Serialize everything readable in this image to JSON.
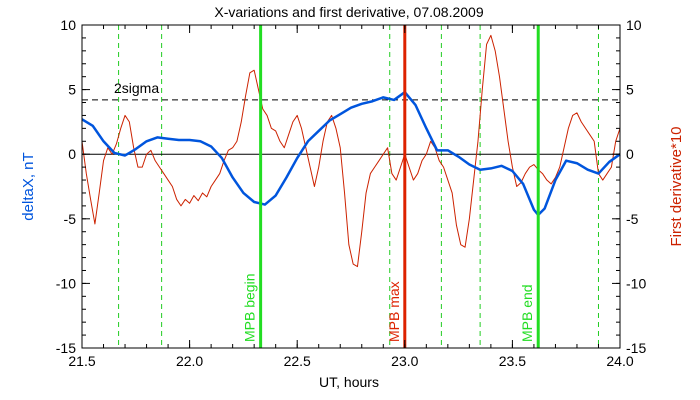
{
  "chart_data": {
    "type": "line",
    "title": "X-variations and first derivative, 07.08.2009",
    "xlabel": "UT, hours",
    "ylabel_left": "deltaX, nT",
    "ylabel_right": "First derivative*10",
    "xlim": [
      21.5,
      24.0
    ],
    "ylim_left": [
      -15,
      10
    ],
    "ylim_right": [
      -15,
      10
    ],
    "x_ticks": [
      "21.5",
      "22.0",
      "22.5",
      "23.0",
      "23.5",
      "24.0"
    ],
    "y_ticks_left": [
      "-15",
      "-10",
      "-5",
      "0",
      "5",
      "10"
    ],
    "y_ticks_right": [
      "-15",
      "-10",
      "-5",
      "0",
      "5",
      "10"
    ],
    "colors": {
      "deltaX": "#0055dd",
      "derivative": "#cc2200",
      "mpb_green": "#22dd22",
      "mpb_red": "#dd2200",
      "threshold": "#000000",
      "axes": "#000000"
    },
    "threshold": {
      "label": "2sigma",
      "y": 4.2
    },
    "zero_line": 0,
    "markers": [
      {
        "x": 22.33,
        "label": "MPB begin",
        "color": "#22dd22"
      },
      {
        "x": 23.0,
        "label": "MPB max",
        "color": "#dd2200"
      },
      {
        "x": 23.62,
        "label": "MPB end",
        "color": "#22dd22"
      }
    ],
    "dashed_verticals": [
      21.67,
      21.87,
      22.93,
      23.17,
      23.35,
      23.9
    ],
    "series": [
      {
        "key": "deltaX",
        "color": "#0055dd",
        "x": [
          21.5,
          21.55,
          21.6,
          21.65,
          21.7,
          21.75,
          21.8,
          21.85,
          21.9,
          21.95,
          22.0,
          22.05,
          22.1,
          22.15,
          22.2,
          22.25,
          22.3,
          22.35,
          22.4,
          22.45,
          22.5,
          22.55,
          22.6,
          22.65,
          22.7,
          22.75,
          22.8,
          22.85,
          22.9,
          22.95,
          23.0,
          23.05,
          23.1,
          23.15,
          23.2,
          23.25,
          23.3,
          23.35,
          23.4,
          23.45,
          23.5,
          23.55,
          23.6,
          23.62,
          23.65,
          23.7,
          23.75,
          23.8,
          23.85,
          23.9,
          23.95,
          24.0
        ],
        "y": [
          2.7,
          2.2,
          1.0,
          0.1,
          -0.1,
          0.4,
          1.0,
          1.3,
          1.2,
          1.1,
          1.1,
          1.0,
          0.6,
          -0.3,
          -1.8,
          -3.0,
          -3.7,
          -3.9,
          -3.2,
          -1.8,
          -0.3,
          1.0,
          1.8,
          2.6,
          3.1,
          3.6,
          3.9,
          4.1,
          4.4,
          4.2,
          4.8,
          3.8,
          2.0,
          0.3,
          0.3,
          -0.2,
          -0.8,
          -1.2,
          -1.1,
          -0.9,
          -1.3,
          -2.3,
          -4.3,
          -4.7,
          -4.2,
          -2.0,
          -0.5,
          -0.7,
          -1.2,
          -1.5,
          -0.6,
          0.0
        ]
      },
      {
        "key": "derivative",
        "color": "#cc2200",
        "x": [
          21.5,
          21.52,
          21.54,
          21.56,
          21.58,
          21.6,
          21.62,
          21.64,
          21.66,
          21.68,
          21.7,
          21.72,
          21.74,
          21.76,
          21.78,
          21.8,
          21.82,
          21.84,
          21.86,
          21.88,
          21.9,
          21.92,
          21.94,
          21.96,
          21.98,
          22.0,
          22.02,
          22.04,
          22.06,
          22.08,
          22.1,
          22.12,
          22.14,
          22.16,
          22.18,
          22.2,
          22.22,
          22.24,
          22.26,
          22.28,
          22.3,
          22.32,
          22.34,
          22.36,
          22.38,
          22.4,
          22.42,
          22.44,
          22.46,
          22.48,
          22.5,
          22.52,
          22.54,
          22.56,
          22.58,
          22.6,
          22.62,
          22.64,
          22.66,
          22.68,
          22.7,
          22.72,
          22.74,
          22.76,
          22.78,
          22.8,
          22.82,
          22.84,
          22.86,
          22.88,
          22.9,
          22.92,
          22.94,
          22.96,
          22.98,
          23.0,
          23.02,
          23.04,
          23.06,
          23.08,
          23.1,
          23.12,
          23.14,
          23.16,
          23.18,
          23.2,
          23.22,
          23.24,
          23.26,
          23.28,
          23.3,
          23.32,
          23.34,
          23.36,
          23.38,
          23.4,
          23.42,
          23.44,
          23.46,
          23.48,
          23.5,
          23.52,
          23.54,
          23.56,
          23.58,
          23.6,
          23.62,
          23.64,
          23.66,
          23.68,
          23.7,
          23.72,
          23.74,
          23.76,
          23.78,
          23.8,
          23.82,
          23.84,
          23.86,
          23.88,
          23.9,
          23.92,
          23.94,
          23.96,
          23.98,
          24.0
        ],
        "y": [
          1.0,
          -1.5,
          -3.5,
          -5.4,
          -3.0,
          -0.5,
          0.5,
          0.0,
          0.8,
          2.0,
          3.0,
          2.5,
          0.5,
          -1.0,
          -1.0,
          0.0,
          0.3,
          -0.5,
          -1.0,
          -1.5,
          -2.0,
          -2.5,
          -3.5,
          -4.0,
          -3.5,
          -3.8,
          -3.2,
          -3.6,
          -3.0,
          -3.3,
          -2.5,
          -2.0,
          -1.5,
          -0.5,
          0.3,
          0.5,
          1.0,
          2.5,
          4.5,
          6.3,
          6.5,
          5.0,
          3.5,
          3.0,
          2.0,
          1.8,
          1.0,
          0.5,
          1.5,
          2.5,
          3.0,
          2.0,
          0.5,
          -1.0,
          -2.5,
          -1.0,
          1.0,
          2.5,
          3.0,
          2.0,
          0.5,
          -3.0,
          -7.0,
          -8.5,
          -8.7,
          -6.0,
          -3.0,
          -1.5,
          -1.0,
          -0.5,
          0.0,
          0.5,
          -1.5,
          -2.0,
          -1.0,
          0.0,
          -1.0,
          -2.0,
          -1.5,
          -0.5,
          0.0,
          1.0,
          0.5,
          -0.5,
          -1.0,
          -2.0,
          -3.0,
          -5.5,
          -7.0,
          -7.2,
          -5.0,
          -2.0,
          1.0,
          5.0,
          8.5,
          9.2,
          8.0,
          6.0,
          3.5,
          1.0,
          -1.0,
          -2.5,
          -2.2,
          -1.5,
          -1.0,
          -0.8,
          -1.2,
          -1.5,
          -2.0,
          -2.3,
          -1.8,
          -1.0,
          0.5,
          2.0,
          3.0,
          3.2,
          2.5,
          2.0,
          1.5,
          1.0,
          -1.5,
          -2.0,
          -1.5,
          -1.0,
          1.0,
          2.0
        ]
      }
    ]
  }
}
